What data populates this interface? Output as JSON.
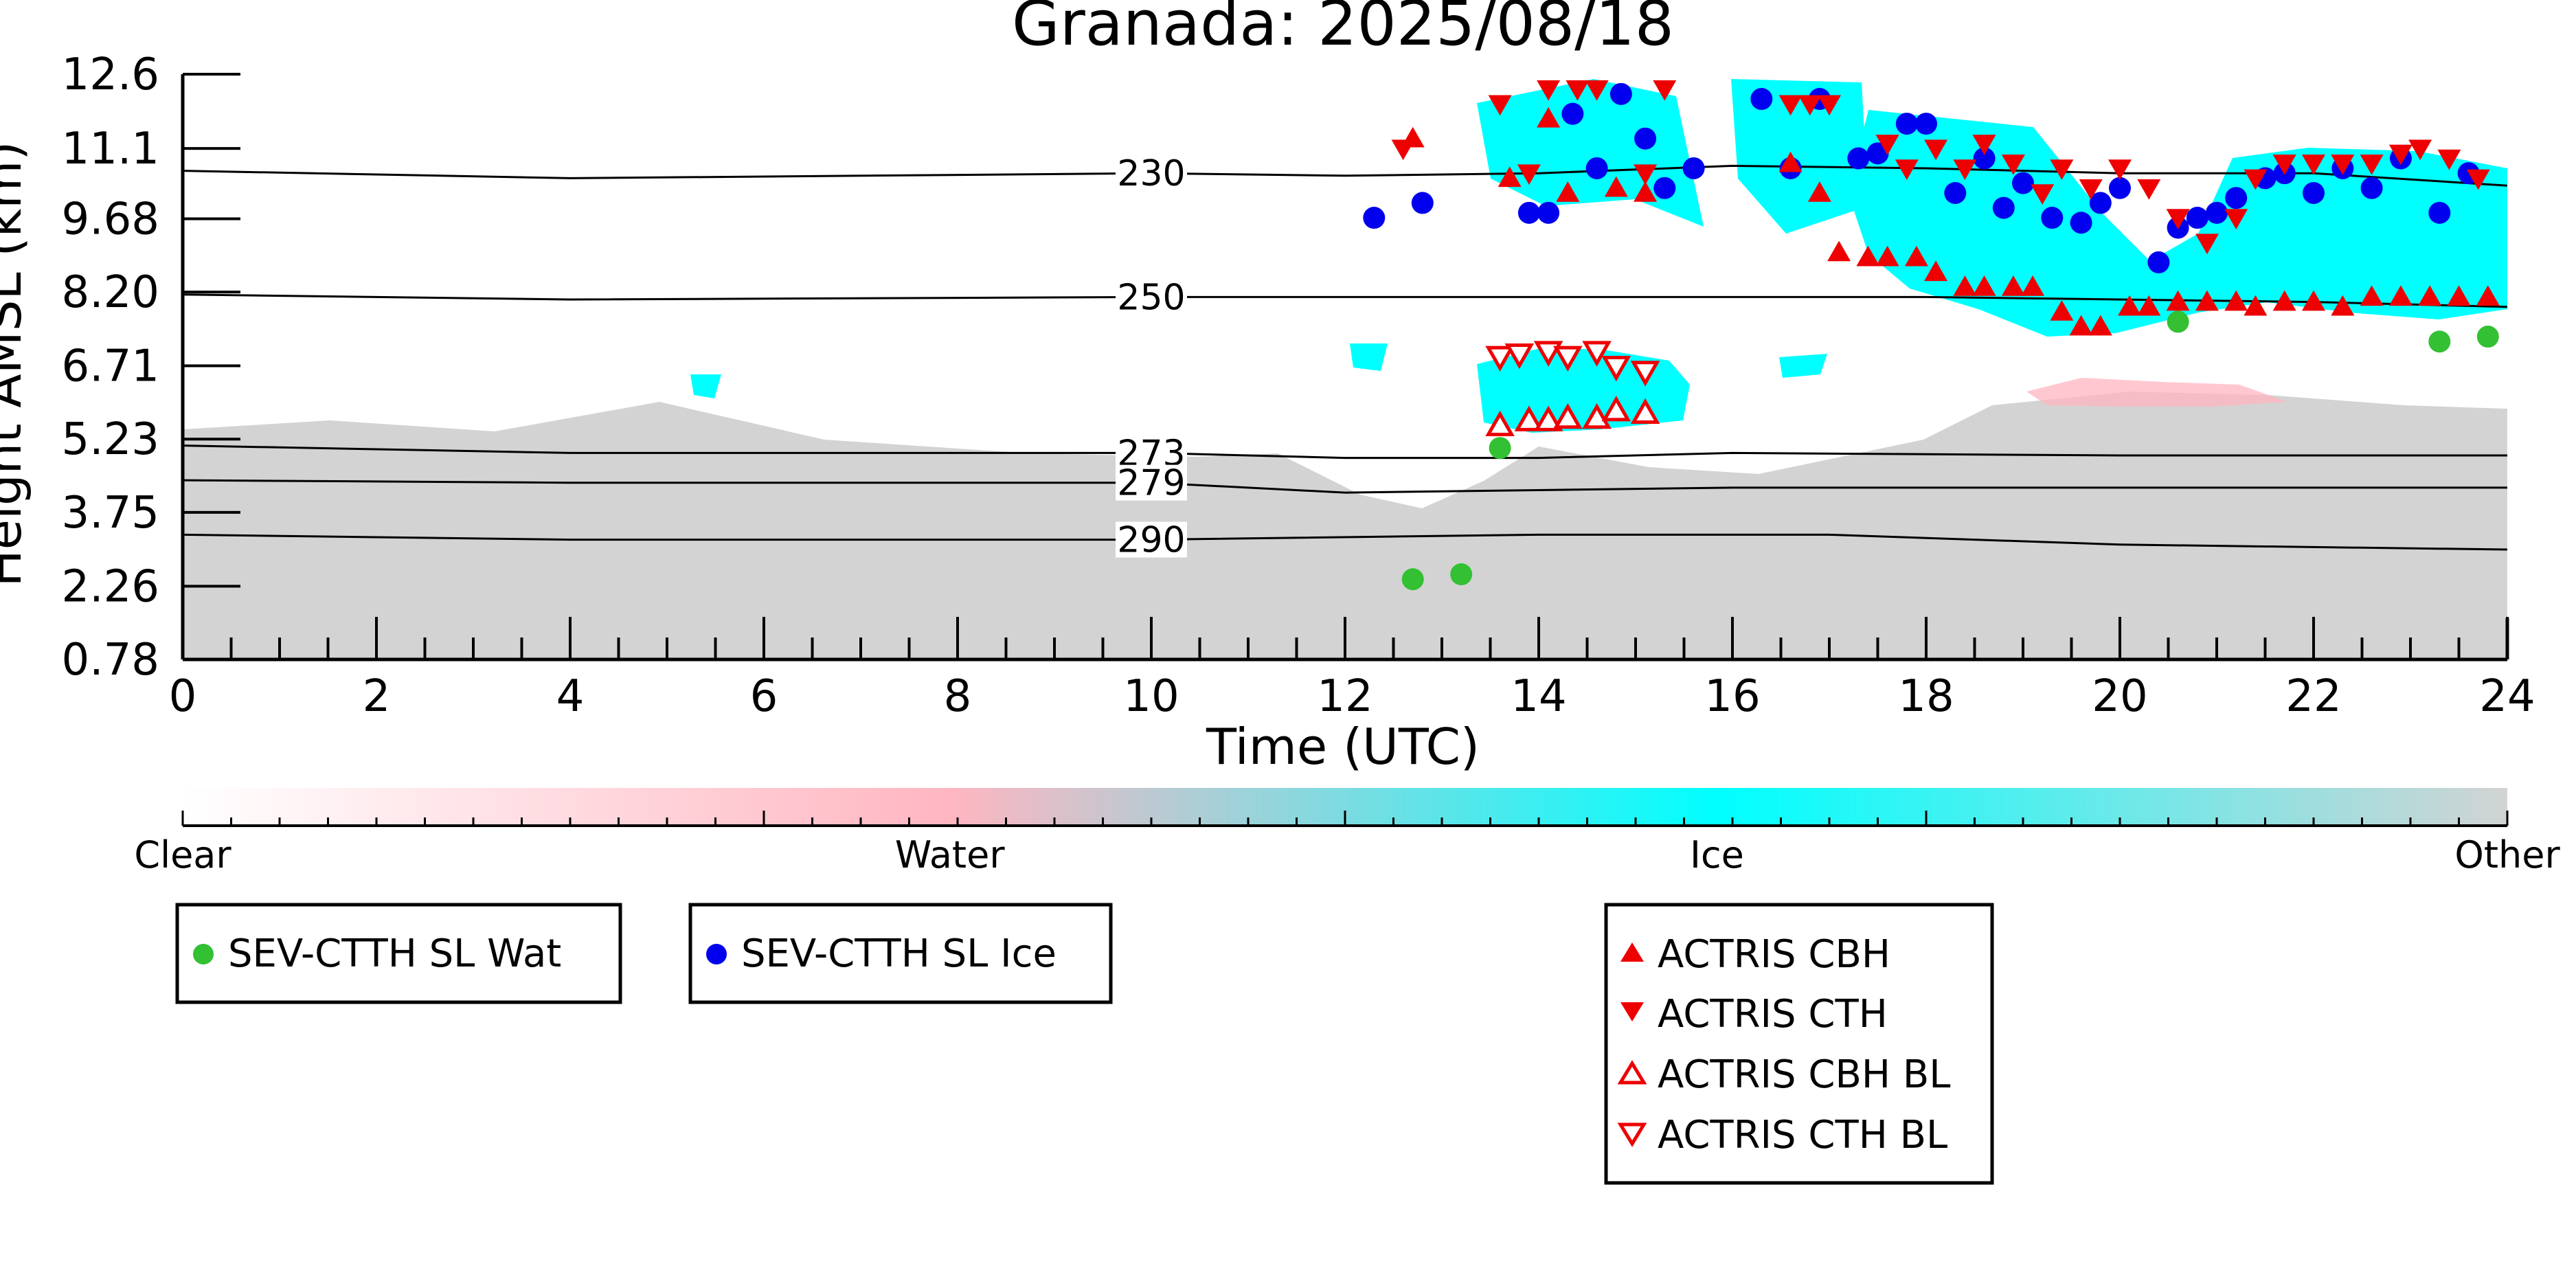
{
  "chart_data": {
    "type": "scatter",
    "title": "Granada: 2025/08/18",
    "xlabel": "Time (UTC)",
    "ylabel": "Height AMSL (km)",
    "xlim": [
      0,
      24
    ],
    "ylim": [
      0.78,
      12.6
    ],
    "x_ticks": [
      "0",
      "2",
      "4",
      "6",
      "8",
      "10",
      "12",
      "14",
      "16",
      "18",
      "20",
      "22",
      "24"
    ],
    "y_ticks": [
      "0.78",
      "2.26",
      "3.75",
      "5.23",
      "6.71",
      "8.20",
      "9.68",
      "11.1",
      "12.6"
    ],
    "isotherms": [
      {
        "label": "230",
        "values": [
          [
            0,
            10.65
          ],
          [
            4,
            10.5
          ],
          [
            10,
            10.6
          ],
          [
            12,
            10.55
          ],
          [
            14,
            10.6
          ],
          [
            16,
            10.75
          ],
          [
            18,
            10.7
          ],
          [
            20,
            10.6
          ],
          [
            22,
            10.6
          ],
          [
            24,
            10.35
          ]
        ]
      },
      {
        "label": "250",
        "values": [
          [
            0,
            8.15
          ],
          [
            4,
            8.05
          ],
          [
            10,
            8.1
          ],
          [
            14,
            8.1
          ],
          [
            18,
            8.1
          ],
          [
            20,
            8.05
          ],
          [
            22,
            8.0
          ],
          [
            24,
            7.9
          ]
        ]
      },
      {
        "label": "273",
        "values": [
          [
            0,
            5.1
          ],
          [
            4,
            4.95
          ],
          [
            10,
            4.95
          ],
          [
            12,
            4.85
          ],
          [
            14,
            4.85
          ],
          [
            16,
            4.95
          ],
          [
            20,
            4.9
          ],
          [
            24,
            4.9
          ]
        ]
      },
      {
        "label": "279",
        "values": [
          [
            0,
            4.4
          ],
          [
            4,
            4.35
          ],
          [
            10,
            4.35
          ],
          [
            12,
            4.15
          ],
          [
            14,
            4.2
          ],
          [
            16,
            4.25
          ],
          [
            20,
            4.25
          ],
          [
            24,
            4.25
          ]
        ]
      },
      {
        "label": "290",
        "values": [
          [
            0,
            3.3
          ],
          [
            4,
            3.2
          ],
          [
            10,
            3.2
          ],
          [
            14,
            3.3
          ],
          [
            17,
            3.3
          ],
          [
            20,
            3.1
          ],
          [
            24,
            3.0
          ]
        ]
      }
    ],
    "classification_colorbar": {
      "labels": [
        "Clear",
        "Water",
        "Ice",
        "Other"
      ],
      "colors": [
        "#ffffff",
        "#ffb6c1",
        "#00ffff",
        "#d3d3d3"
      ]
    },
    "legends": [
      {
        "entries": [
          {
            "label": "SEV-CTTH SL Wat",
            "marker": "circle",
            "color": "#33c033"
          }
        ]
      },
      {
        "entries": [
          {
            "label": "SEV-CTTH SL Ice",
            "marker": "circle",
            "color": "#0000ee"
          }
        ]
      },
      {
        "entries": [
          {
            "label": "ACTRIS CBH",
            "marker": "triangle-up",
            "color": "#ee0000"
          },
          {
            "label": "ACTRIS CTH",
            "marker": "triangle-down",
            "color": "#ee0000"
          },
          {
            "label": "ACTRIS CBH BL",
            "marker": "triangle-up-open",
            "color": "#ee0000"
          },
          {
            "label": "ACTRIS CTH BL",
            "marker": "triangle-down-open",
            "color": "#ee0000"
          }
        ]
      }
    ],
    "series": [
      {
        "name": "SEV-CTTH SL Wat",
        "marker": "circle",
        "color": "#33c033",
        "x": [
          12.7,
          13.2,
          13.6,
          20.6,
          23.3,
          23.8
        ],
        "y": [
          2.4,
          2.5,
          5.05,
          7.6,
          7.2,
          7.3
        ]
      },
      {
        "name": "SEV-CTTH SL Ice",
        "marker": "circle",
        "color": "#0000ee",
        "x": [
          12.3,
          12.8,
          13.9,
          14.1,
          14.35,
          14.6,
          14.85,
          15.1,
          15.3,
          15.6,
          16.3,
          16.6,
          16.9,
          17.3,
          17.5,
          17.8,
          18.0,
          18.3,
          18.6,
          18.8,
          19.0,
          19.3,
          19.6,
          19.8,
          20.0,
          20.4,
          20.6,
          20.8,
          21.0,
          21.2,
          21.5,
          21.7,
          22.0,
          22.3,
          22.6,
          22.9,
          23.3,
          23.6
        ],
        "y": [
          9.7,
          10.0,
          9.8,
          9.8,
          11.8,
          10.7,
          12.2,
          11.3,
          10.3,
          10.7,
          12.1,
          10.7,
          12.1,
          10.9,
          11.0,
          11.6,
          11.6,
          10.2,
          10.9,
          9.9,
          10.4,
          9.7,
          9.6,
          10.0,
          10.3,
          8.8,
          9.5,
          9.7,
          9.8,
          10.1,
          10.5,
          10.6,
          10.2,
          10.7,
          10.3,
          10.9,
          9.8,
          10.6
        ]
      },
      {
        "name": "ACTRIS CBH",
        "marker": "triangle-up",
        "color": "#ee0000",
        "x": [
          12.7,
          13.7,
          14.1,
          14.3,
          14.8,
          15.1,
          16.6,
          16.9,
          17.1,
          17.4,
          17.6,
          17.9,
          18.1,
          18.4,
          18.6,
          18.9,
          19.1,
          19.4,
          19.6,
          19.8,
          20.1,
          20.3,
          20.6,
          20.9,
          21.2,
          21.4,
          21.7,
          22.0,
          22.3,
          22.6,
          22.9,
          23.2,
          23.5,
          23.8
        ],
        "y": [
          11.3,
          10.5,
          11.7,
          10.2,
          10.3,
          10.2,
          10.8,
          10.2,
          9.0,
          8.9,
          8.9,
          8.9,
          8.6,
          8.3,
          8.3,
          8.3,
          8.3,
          7.8,
          7.5,
          7.5,
          7.9,
          7.9,
          8.0,
          8.0,
          8.0,
          7.9,
          8.0,
          8.0,
          7.9,
          8.1,
          8.1,
          8.1,
          8.1,
          8.1
        ]
      },
      {
        "name": "ACTRIS CTH",
        "marker": "triangle-down",
        "color": "#ee0000",
        "x": [
          12.6,
          13.6,
          13.9,
          14.1,
          14.4,
          14.6,
          15.1,
          15.3,
          16.6,
          16.8,
          17.0,
          17.6,
          17.8,
          18.1,
          18.4,
          18.6,
          18.9,
          19.2,
          19.4,
          19.7,
          20.0,
          20.3,
          20.6,
          20.9,
          21.2,
          21.4,
          21.7,
          22.0,
          22.3,
          22.6,
          22.9,
          23.1,
          23.4,
          23.7
        ],
        "y": [
          11.1,
          12.0,
          10.6,
          12.3,
          12.3,
          12.3,
          10.6,
          12.3,
          12.0,
          12.0,
          12.0,
          11.2,
          10.7,
          11.1,
          10.7,
          11.2,
          10.8,
          10.2,
          10.7,
          10.3,
          10.7,
          10.3,
          9.7,
          9.2,
          9.7,
          10.5,
          10.8,
          10.8,
          10.8,
          10.8,
          11.0,
          11.1,
          10.9,
          10.5
        ]
      },
      {
        "name": "ACTRIS CBH BL",
        "marker": "triangle-up-open",
        "color": "#ee0000",
        "x": [
          13.6,
          13.9,
          14.1,
          14.3,
          14.6,
          14.8,
          15.1
        ],
        "y": [
          5.5,
          5.6,
          5.6,
          5.65,
          5.65,
          5.8,
          5.75
        ]
      },
      {
        "name": "ACTRIS CTH BL",
        "marker": "triangle-down-open",
        "color": "#ee0000",
        "x": [
          13.6,
          13.8,
          14.1,
          14.3,
          14.6,
          14.8,
          15.1
        ],
        "y": [
          6.9,
          6.95,
          7.0,
          6.9,
          7.0,
          6.7,
          6.6
        ]
      }
    ]
  }
}
